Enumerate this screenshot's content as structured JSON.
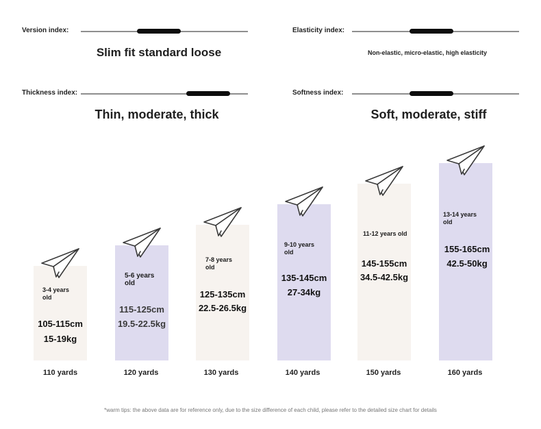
{
  "indices": {
    "version": {
      "label": "Version index:",
      "caption": "Slim fit standard loose"
    },
    "elasticity": {
      "label": "Elasticity index:",
      "caption": "Non-elastic, micro-elastic, high elasticity"
    },
    "thickness": {
      "label": "Thickness index:",
      "caption": "Thin, moderate, thick"
    },
    "softness": {
      "label": "Softness index:",
      "caption": "Soft, moderate, stiff"
    }
  },
  "sizes": [
    {
      "age_line1": "3-4 years",
      "age_line2": "old",
      "height": "105-115cm",
      "weight": "15-19kg",
      "yards": "110 yards",
      "bar_color": "#f7f3ef"
    },
    {
      "age_line1": "5-6 years",
      "age_line2": "old",
      "height": "115-125cm",
      "weight": "19.5-22.5kg",
      "yards": "120 yards",
      "bar_color": "#dedbef"
    },
    {
      "age_line1": "7-8 years",
      "age_line2": "old",
      "height": "125-135cm",
      "weight": "22.5-26.5kg",
      "yards": "130 yards",
      "bar_color": "#f7f3ef"
    },
    {
      "age_line1": "9-10 years",
      "age_line2": "old",
      "height": "135-145cm",
      "weight": "27-34kg",
      "yards": "140 yards",
      "bar_color": "#dedbef"
    },
    {
      "age_line1": "11-12 years old",
      "age_line2": "",
      "height": "145-155cm",
      "weight": "34.5-42.5kg",
      "yards": "150 yards",
      "bar_color": "#f7f3ef"
    },
    {
      "age_line1": "13-14 years",
      "age_line2": "old",
      "height": "155-165cm",
      "weight": "42.5-50kg",
      "yards": "160 yards",
      "bar_color": "#dedbef"
    }
  ],
  "footnote": "*warm tips: the above data are for reference only, due to the size difference of each child, please refer to the detailed size chart for details",
  "icons": {
    "marker": "paper-plane-icon"
  }
}
